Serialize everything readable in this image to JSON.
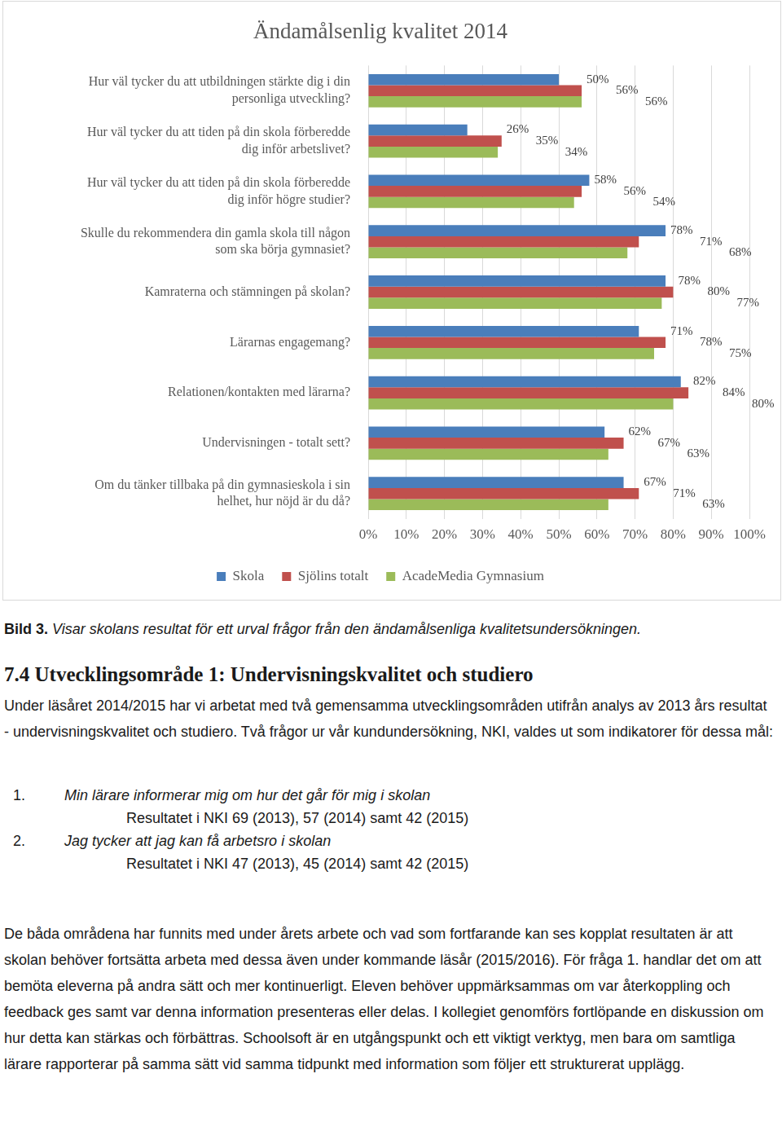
{
  "chart_data": {
    "type": "bar",
    "orientation": "horizontal",
    "title": "Ändamålsenlig kvalitet 2014",
    "categories": [
      "Hur väl tycker du att utbildningen stärkte dig i din personliga utveckling?",
      "Hur väl tycker du att tiden på din skola förberedde dig inför arbetslivet?",
      "Hur väl tycker du att tiden på din skola förberedde dig inför högre studier?",
      "Skulle du rekommendera din gamla skola till någon som ska börja gymnasiet?",
      "Kamraterna och stämningen på skolan?",
      "Lärarnas engagemang?",
      "Relationen/kontakten med lärarna?",
      "Undervisningen - totalt sett?",
      "Om du tänker tillbaka på din gymnasieskola i sin helhet, hur nöjd är du då?"
    ],
    "series": [
      {
        "name": "Skola",
        "color": "#4a7ebb",
        "values": [
          50,
          26,
          58,
          78,
          78,
          71,
          82,
          62,
          67
        ],
        "value_labels": [
          "50%",
          "26%",
          "58%",
          "78%",
          "78%",
          "71%",
          "82%",
          "62%",
          "67%"
        ]
      },
      {
        "name": "Sjölins totalt",
        "color": "#c0504d",
        "values": [
          56,
          35,
          56,
          71,
          80,
          78,
          84,
          67,
          71
        ],
        "value_labels": [
          "56%",
          "35%",
          "56%",
          "71%",
          "80%",
          "78%",
          "84%",
          "67%",
          "71%"
        ]
      },
      {
        "name": "AcadeMedia Gymnasium",
        "color": "#9bbb59",
        "values": [
          56,
          34,
          54,
          68,
          77,
          75,
          80,
          63,
          63
        ],
        "value_labels": [
          "56%",
          "34%",
          "54%",
          "68%",
          "77%",
          "75%",
          "80%",
          "63%",
          "63%"
        ]
      }
    ],
    "xlim": [
      0,
      100
    ],
    "xticks": [
      {
        "value": 0,
        "label": "0%"
      },
      {
        "value": 10,
        "label": "10%"
      },
      {
        "value": 20,
        "label": "20%"
      },
      {
        "value": 30,
        "label": "30%"
      },
      {
        "value": 40,
        "label": "40%"
      },
      {
        "value": 50,
        "label": "50%"
      },
      {
        "value": 60,
        "label": "60%"
      },
      {
        "value": 70,
        "label": "70%"
      },
      {
        "value": 80,
        "label": "80%"
      },
      {
        "value": 90,
        "label": "90%"
      },
      {
        "value": 100,
        "label": "100%"
      }
    ],
    "grid": true,
    "legend": "bottom",
    "data_labels": true
  },
  "caption": {
    "label": "Bild 3.",
    "text": "Visar skolans resultat för ett urval frågor från den ändamålsenliga kvalitetsundersökningen."
  },
  "section": {
    "heading": "7.4 Utvecklingsområde 1: Undervisningskvalitet och studiero",
    "intro": "Under läsåret 2014/2015 har vi arbetat med två gemensamma utvecklingsområden utifrån analys av 2013 års resultat - undervisningskvalitet och studiero. Två frågor ur vår kundundersökning, NKI, valdes ut som indikatorer för dessa mål:",
    "items": [
      {
        "number": "1.",
        "title": "Min lärare informerar mig om hur det går för mig i skolan",
        "result": "Resultatet i NKI 69 (2013), 57 (2014) samt 42 (2015)"
      },
      {
        "number": "2.",
        "title": "Jag tycker att jag kan få arbetsro i skolan",
        "result": "Resultatet i NKI 47 (2013), 45 (2014) samt 42 (2015)"
      }
    ],
    "conclusion": "De båda områdena har funnits med under årets arbete och vad som fortfarande kan ses kopplat resultaten är att skolan behöver fortsätta arbeta med dessa även under kommande läsår (2015/2016). För fråga 1. handlar det om att bemöta eleverna på andra sätt och mer kontinuerligt. Eleven behöver uppmärksammas om var återkoppling och feedback ges samt var denna information presenteras eller delas. I kollegiet genomförs fortlöpande en diskussion om hur detta kan stärkas och förbättras. Schoolsoft är en utgångspunkt och ett viktigt verktyg, men bara om samtliga lärare rapporterar på samma sätt vid samma tidpunkt med information som följer ett strukturerat upplägg."
  }
}
